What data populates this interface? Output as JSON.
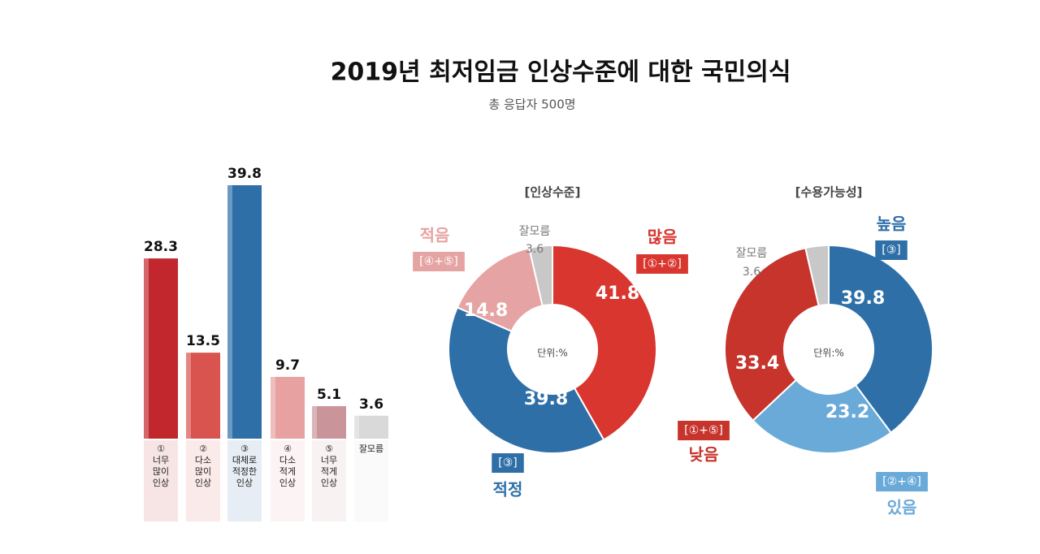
{
  "header": {
    "title": "2019년 최저임금 인상수준에 대한 국민의식",
    "subtitle": "총 응답자 500명"
  },
  "chart_data": [
    {
      "type": "bar",
      "categories": [
        "①\n너무\n많이\n인상",
        "②\n다소\n많이\n인상",
        "③\n대체로\n적정한\n인상",
        "④\n다소\n적게\n인상",
        "⑤\n너무\n적게\n인상",
        "잘모름"
      ],
      "values": [
        28.3,
        13.5,
        39.8,
        9.7,
        5.1,
        3.6
      ],
      "colors": [
        "#c1272d",
        "#d9534f",
        "#2f6fa8",
        "#e8a1a1",
        "#c9959a",
        "#d9d9d9"
      ]
    },
    {
      "type": "pie",
      "title": "[인상수준]",
      "center_label": "단위:%",
      "categories": [
        "많음",
        "적정",
        "적음",
        "잘모름"
      ],
      "groups": [
        "[①+②]",
        "[③]",
        "[④+⑤]",
        null
      ],
      "values": [
        41.8,
        39.8,
        14.8,
        3.6
      ],
      "colors": [
        "#d9362f",
        "#2f6fa8",
        "#e6a3a3",
        "#c8c8c8"
      ]
    },
    {
      "type": "pie",
      "title": "[수용가능성]",
      "center_label": "단위:%",
      "categories": [
        "높음",
        "있음",
        "낮음",
        "잘모름"
      ],
      "groups": [
        "[③]",
        "[②+④]",
        "[①+⑤]",
        null
      ],
      "values": [
        39.8,
        23.2,
        33.4,
        3.6
      ],
      "colors": [
        "#2f6fa8",
        "#6aaad9",
        "#c6342c",
        "#c8c8c8"
      ]
    }
  ]
}
